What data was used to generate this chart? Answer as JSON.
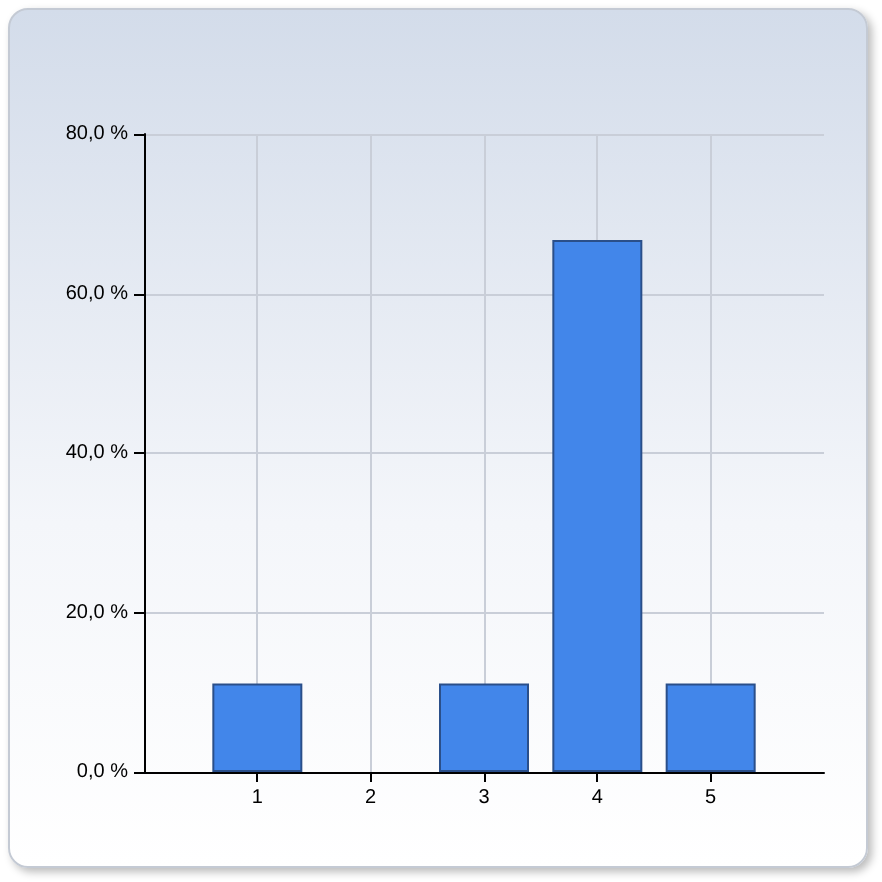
{
  "chart_data": {
    "type": "bar",
    "x": [
      1,
      2,
      3,
      4,
      5
    ],
    "values": [
      11.1,
      0,
      11.1,
      66.7,
      11.1
    ],
    "color": "#4286ea",
    "xlim": [
      0,
      6
    ],
    "xticks": [
      1,
      2,
      3,
      4,
      5
    ],
    "ylim": [
      0,
      80
    ],
    "yticks": [
      {
        "value": 0,
        "label": "0,0 %"
      },
      {
        "value": 20,
        "label": "20,0 %"
      },
      {
        "value": 40,
        "label": "40,0 %"
      },
      {
        "value": 60,
        "label": "60,0 %"
      },
      {
        "value": 80,
        "label": "80,0 %"
      }
    ],
    "grid": true
  }
}
